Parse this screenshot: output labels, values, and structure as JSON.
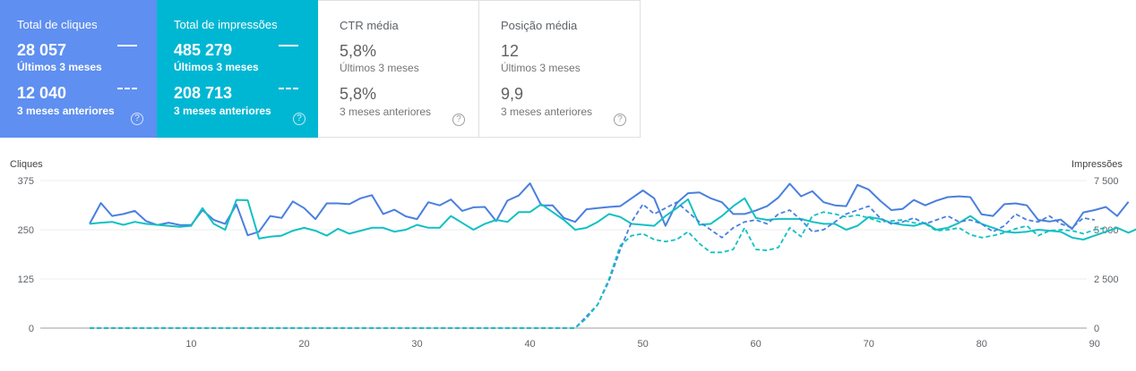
{
  "cards": [
    {
      "id": "clicks",
      "title": "Total de cliques",
      "current_value": "28 057",
      "current_label": "Últimos 3 meses",
      "previous_value": "12 040",
      "previous_label": "3 meses anteriores",
      "color": "#5f8ff0",
      "help": "?"
    },
    {
      "id": "impressions",
      "title": "Total de impressões",
      "current_value": "485 279",
      "current_label": "Últimos 3 meses",
      "previous_value": "208 713",
      "previous_label": "3 meses anteriores",
      "color": "#00b7d3",
      "help": "?"
    },
    {
      "id": "ctr",
      "title": "CTR média",
      "current_value": "5,8%",
      "current_label": "Últimos 3 meses",
      "previous_value": "5,8%",
      "previous_label": "3 meses anteriores",
      "help": "?"
    },
    {
      "id": "position",
      "title": "Posição média",
      "current_value": "12",
      "current_label": "Últimos 3 meses",
      "previous_value": "9,9",
      "previous_label": "3 meses anteriores",
      "help": "?"
    }
  ],
  "chart_data": {
    "type": "line",
    "left_axis_label": "Cliques",
    "right_axis_label": "Impressões",
    "left_ticks": [
      "0",
      "125",
      "250",
      "375"
    ],
    "right_ticks": [
      "0",
      "2 500",
      "5 000",
      "7 500"
    ],
    "x_ticks": [
      "10",
      "20",
      "30",
      "40",
      "50",
      "60",
      "70",
      "80",
      "90"
    ],
    "x_range": [
      1,
      92
    ],
    "left_range": [
      0,
      375
    ],
    "right_range": [
      0,
      7500
    ],
    "series": [
      {
        "key": "clicks_current",
        "axis": "left",
        "color": "#4a7fe0",
        "dashed": false,
        "values": [
          265,
          318,
          285,
          290,
          298,
          272,
          262,
          268,
          262,
          262,
          300,
          275,
          265,
          314,
          236,
          245,
          285,
          280,
          322,
          305,
          277,
          317,
          317,
          315,
          330,
          338,
          290,
          301,
          284,
          277,
          320,
          312,
          327,
          298,
          307,
          308,
          272,
          324,
          337,
          368,
          312,
          312,
          280,
          270,
          302,
          305,
          308,
          310,
          330,
          350,
          330,
          260,
          318,
          343,
          345,
          330,
          320,
          290,
          290,
          299,
          310,
          332,
          367,
          335,
          348,
          320,
          312,
          310,
          364,
          352,
          324,
          300,
          303,
          326,
          312,
          324,
          333,
          335,
          333,
          289,
          285,
          315,
          317,
          312,
          275,
          271,
          276,
          252,
          294,
          300,
          308,
          285,
          321
        ]
      },
      {
        "key": "impressions_current",
        "axis": "right",
        "color": "#12c0c3",
        "dashed": false,
        "values": [
          5300,
          5360,
          5400,
          5250,
          5400,
          5300,
          5250,
          5200,
          5150,
          5200,
          6100,
          5300,
          5000,
          6520,
          6500,
          4550,
          4650,
          4700,
          4950,
          5100,
          4950,
          4700,
          5050,
          4800,
          4950,
          5100,
          5100,
          4900,
          5000,
          5250,
          5100,
          5100,
          5700,
          5350,
          5000,
          5300,
          5500,
          5400,
          5900,
          5900,
          6300,
          5900,
          5500,
          5000,
          5100,
          5400,
          5800,
          5650,
          5300,
          5250,
          5200,
          5700,
          6100,
          6550,
          5250,
          5300,
          5700,
          6200,
          6600,
          5600,
          5500,
          5550,
          5550,
          5550,
          5400,
          5300,
          5300,
          5000,
          5200,
          5650,
          5550,
          5350,
          5250,
          5200,
          5350,
          5000,
          5100,
          5350,
          5700,
          5300,
          5100,
          4900,
          4850,
          4900,
          5000,
          4950,
          4900,
          4600,
          4500,
          4700,
          4900,
          5100,
          4850,
          5100
        ]
      },
      {
        "key": "clicks_previous",
        "axis": "left",
        "color": "#4a7fe0",
        "dashed": true,
        "values": [
          0,
          0,
          0,
          0,
          0,
          0,
          0,
          0,
          0,
          0,
          0,
          0,
          0,
          0,
          0,
          0,
          0,
          0,
          0,
          0,
          0,
          0,
          0,
          0,
          0,
          0,
          0,
          0,
          0,
          0,
          0,
          0,
          0,
          0,
          0,
          0,
          0,
          0,
          0,
          0,
          0,
          0,
          0,
          0,
          30,
          60,
          120,
          200,
          270,
          315,
          290,
          305,
          320,
          295,
          270,
          250,
          230,
          255,
          270,
          275,
          265,
          290,
          300,
          275,
          245,
          250,
          270,
          290,
          300,
          310,
          280,
          265,
          270,
          280,
          265,
          275,
          285,
          270,
          275,
          265,
          245,
          260,
          290,
          275,
          270,
          285,
          265,
          255,
          280,
          275
        ]
      },
      {
        "key": "impressions_previous",
        "axis": "right",
        "color": "#12c0c3",
        "dashed": true,
        "values": [
          0,
          0,
          0,
          0,
          0,
          0,
          0,
          0,
          0,
          0,
          0,
          0,
          0,
          0,
          0,
          0,
          0,
          0,
          0,
          0,
          0,
          0,
          0,
          0,
          0,
          0,
          0,
          0,
          0,
          0,
          0,
          0,
          0,
          0,
          0,
          0,
          0,
          0,
          0,
          0,
          0,
          0,
          0,
          0,
          500,
          1200,
          2500,
          4200,
          4700,
          4800,
          4500,
          4400,
          4500,
          4900,
          4300,
          3850,
          3850,
          4000,
          5100,
          4000,
          3950,
          4100,
          5100,
          4650,
          5700,
          5900,
          5800,
          5650,
          5750,
          5600,
          5400,
          5450,
          5500,
          5350,
          5300,
          4950,
          5000,
          5100,
          4750,
          4600,
          4700,
          4850,
          5050,
          5200,
          4700,
          4950,
          5000,
          4950,
          4800,
          5000,
          5100
        ]
      }
    ]
  }
}
